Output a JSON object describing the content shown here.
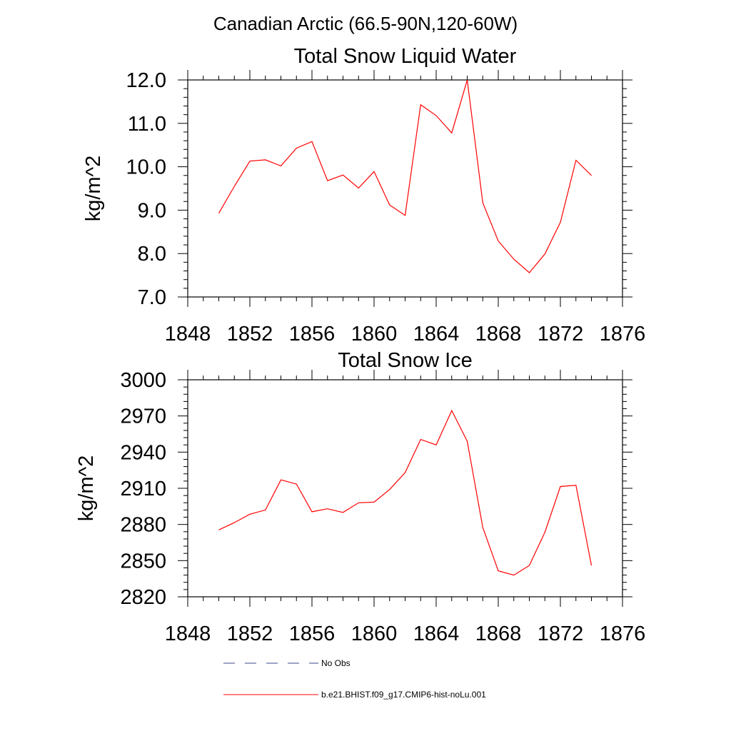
{
  "page_title": "Canadian Arctic (66.5-90N,120-60W)",
  "chart_data": [
    {
      "type": "line",
      "title": "Total Snow Liquid Water",
      "xlabel": "",
      "ylabel": "kg/m^2",
      "xlim": [
        1848,
        1876
      ],
      "ylim": [
        7.0,
        12.0
      ],
      "xticks": [
        1848,
        1852,
        1856,
        1860,
        1864,
        1868,
        1872,
        1876
      ],
      "xtick_labels": [
        "1848",
        "1852",
        "1856",
        "1860",
        "1864",
        "1868",
        "1872",
        "1876"
      ],
      "yticks": [
        7.0,
        8.0,
        9.0,
        10.0,
        11.0,
        12.0
      ],
      "ytick_labels": [
        "7.0",
        "8.0",
        "9.0",
        "10.0",
        "11.0",
        "12.0"
      ],
      "grid": false,
      "series": [
        {
          "name": "b.e21.BHIST.f09_g17.CMIP6-hist-noLu.001",
          "color": "#ff0000",
          "x": [
            1850,
            1851,
            1852,
            1853,
            1854,
            1855,
            1856,
            1857,
            1858,
            1859,
            1860,
            1861,
            1862,
            1863,
            1864,
            1865,
            1866,
            1867,
            1868,
            1869,
            1870,
            1871,
            1872,
            1873,
            1874
          ],
          "y": [
            8.93,
            9.55,
            10.13,
            10.16,
            10.02,
            10.43,
            10.58,
            9.68,
            9.81,
            9.51,
            9.89,
            9.12,
            8.88,
            11.43,
            11.18,
            10.78,
            12.0,
            9.17,
            8.29,
            7.87,
            7.56,
            7.99,
            8.72,
            10.15,
            9.8
          ]
        }
      ]
    },
    {
      "type": "line",
      "title": "Total Snow Ice",
      "xlabel": "",
      "ylabel": "kg/m^2",
      "xlim": [
        1848,
        1876
      ],
      "ylim": [
        2820,
        3000
      ],
      "xticks": [
        1848,
        1852,
        1856,
        1860,
        1864,
        1868,
        1872,
        1876
      ],
      "xtick_labels": [
        "1848",
        "1852",
        "1856",
        "1860",
        "1864",
        "1868",
        "1872",
        "1876"
      ],
      "yticks": [
        2820,
        2850,
        2880,
        2910,
        2940,
        2970,
        3000
      ],
      "ytick_labels": [
        "2820",
        "2850",
        "2880",
        "2910",
        "2940",
        "2970",
        "3000"
      ],
      "grid": false,
      "series": [
        {
          "name": "b.e21.BHIST.f09_g17.CMIP6-hist-noLu.001",
          "color": "#ff0000",
          "x": [
            1850,
            1851,
            1852,
            1853,
            1854,
            1855,
            1856,
            1857,
            1858,
            1859,
            1860,
            1861,
            1862,
            1863,
            1864,
            1865,
            1866,
            1867,
            1868,
            1869,
            1870,
            1871,
            1872,
            1873,
            1874
          ],
          "y": [
            2875.5,
            2881.5,
            2888.5,
            2892,
            2917,
            2913.5,
            2890.5,
            2893,
            2890,
            2898,
            2898.5,
            2909,
            2923,
            2950.5,
            2946,
            2974.5,
            2949,
            2877.5,
            2841.5,
            2838,
            2846,
            2873.5,
            2911.5,
            2912.5,
            2846
          ]
        }
      ]
    }
  ],
  "legend": {
    "placement": "bottom",
    "items": [
      {
        "label": "No Obs",
        "color": "#3a4a8a",
        "style": "dashed"
      },
      {
        "label": "b.e21.BHIST.f09_g17.CMIP6-hist-noLu.001",
        "color": "#ff0000",
        "style": "solid"
      }
    ]
  }
}
